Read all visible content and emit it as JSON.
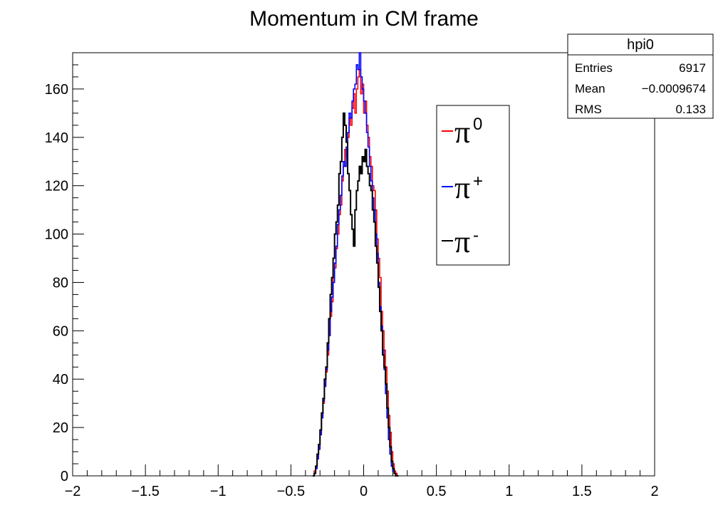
{
  "chart_data": {
    "type": "histogram",
    "title": "Momentum in CM frame",
    "xlabel": "",
    "ylabel": "",
    "xlim": [
      -2,
      2
    ],
    "ylim": [
      0,
      175
    ],
    "x_ticks": [
      "−2",
      "−1.5",
      "−1",
      "−0.5",
      "0",
      "0.5",
      "1",
      "1.5",
      "2"
    ],
    "x_tick_values": [
      -2,
      -1.5,
      -1,
      -0.5,
      0,
      0.5,
      1,
      1.5,
      2
    ],
    "y_ticks": [
      "0",
      "20",
      "40",
      "60",
      "80",
      "100",
      "120",
      "140",
      "160"
    ],
    "y_tick_values": [
      0,
      20,
      40,
      60,
      80,
      100,
      120,
      140,
      160
    ],
    "bin_width": 0.01,
    "x_start": -0.35,
    "series": [
      {
        "name": "π0",
        "color": "#ff0000",
        "values": [
          0,
          2,
          4,
          8,
          12,
          18,
          25,
          30,
          38,
          43,
          50,
          58,
          66,
          72,
          82,
          86,
          94,
          100,
          108,
          112,
          122,
          128,
          135,
          132,
          140,
          148,
          145,
          152,
          158,
          150,
          160,
          165,
          168,
          158,
          162,
          150,
          155,
          145,
          140,
          132,
          128,
          120,
          118,
          110,
          98,
          90,
          82,
          68,
          60,
          52,
          45,
          35,
          25,
          18,
          10,
          5,
          2,
          1,
          0
        ]
      },
      {
        "name": "π+",
        "color": "#0000ff",
        "values": [
          0,
          1,
          3,
          7,
          11,
          17,
          24,
          31,
          37,
          44,
          52,
          58,
          68,
          74,
          80,
          88,
          95,
          104,
          110,
          116,
          124,
          130,
          128,
          136,
          142,
          150,
          148,
          155,
          160,
          162,
          170,
          168,
          175,
          165,
          160,
          155,
          150,
          142,
          136,
          128,
          122,
          115,
          110,
          100,
          92,
          80,
          70,
          62,
          52,
          44,
          34,
          24,
          15,
          9,
          4,
          2,
          1,
          0,
          0
        ]
      },
      {
        "name": "π-",
        "color": "#000000",
        "values": [
          0,
          1,
          4,
          9,
          13,
          19,
          26,
          32,
          40,
          45,
          55,
          65,
          75,
          82,
          90,
          100,
          105,
          112,
          125,
          130,
          140,
          150,
          145,
          138,
          125,
          118,
          108,
          102,
          95,
          110,
          118,
          122,
          128,
          125,
          132,
          130,
          135,
          128,
          125,
          120,
          118,
          110,
          105,
          95,
          88,
          78,
          68,
          60,
          50,
          45,
          38,
          28,
          20,
          12,
          6,
          3,
          1,
          0,
          0
        ]
      }
    ],
    "legend": {
      "position": "top-right",
      "entries": [
        {
          "label": "π",
          "sup": "0",
          "color": "#ff0000"
        },
        {
          "label": "π",
          "sup": "+",
          "color": "#0000ff"
        },
        {
          "label": "π",
          "sup": "-",
          "color": "#000000"
        }
      ]
    },
    "stats_box": {
      "name": "hpi0",
      "rows": [
        {
          "label": "Entries",
          "value": "6917"
        },
        {
          "label": "Mean",
          "value": "−0.0009674"
        },
        {
          "label": "RMS",
          "value": "0.133"
        }
      ]
    }
  }
}
